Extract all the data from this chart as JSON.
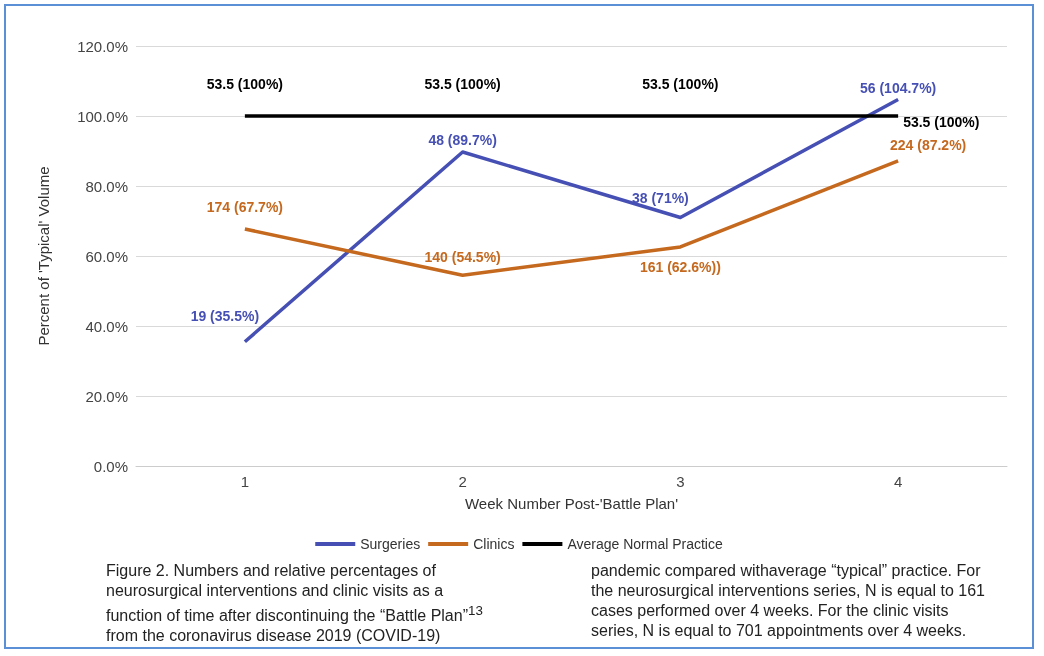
{
  "chart_data": {
    "type": "line",
    "xlabel": "Week Number Post-'Battle Plan'",
    "ylabel": "Percent of 'Typical' Volume",
    "categories": [
      "1",
      "2",
      "3",
      "4"
    ],
    "series": [
      {
        "name": "Surgeries",
        "color": "#4650b4",
        "values": [
          35.5,
          89.7,
          71,
          104.7
        ],
        "value_labels": [
          "19 (35.5%)",
          "48 (89.7%)",
          "38 (71%)",
          "56 (104.7%)"
        ]
      },
      {
        "name": "Clinics",
        "color": "#c5691f",
        "values": [
          67.7,
          54.5,
          62.6,
          87.2
        ],
        "value_labels": [
          "174 (67.7%)",
          "140 (54.5%)",
          "161 (62.6%))",
          "224 (87.2%)"
        ]
      },
      {
        "name": "Average Normal Practice",
        "color": "#000000",
        "values": [
          100,
          100,
          100,
          100
        ],
        "value_labels": [
          "53.5 (100%)",
          "53.5 (100%)",
          "53.5 (100%)",
          "53.5 (100%)"
        ]
      }
    ],
    "ylim": [
      0,
      120
    ],
    "yticks": [
      {
        "value": 0,
        "label": "0.0%"
      },
      {
        "value": 20,
        "label": "20.0%"
      },
      {
        "value": 40,
        "label": "40.0%"
      },
      {
        "value": 60,
        "label": "60.0%"
      },
      {
        "value": 80,
        "label": "80.0%"
      },
      {
        "value": 100,
        "label": "100.0%"
      },
      {
        "value": 120,
        "label": "120.0%"
      }
    ],
    "grid": "y",
    "legend": "bottom",
    "marker": "none",
    "line_style": "solid",
    "annotations": [
      "Figure 2. Numbers and relative percentages of neurosurgical interventions and clinic visits as a function of time after discontinuing the “Battle Plan”$^{13}$ from the coronavirus disease 2019 (COVID-19) pandemic compared withaverage “typical” practice. For the neurosurgical interventions series, N is equal to 161 cases performed over 4 weeks. For the clinic visits series, N is equal to 701 appointments over 4 weeks."
    ]
  }
}
